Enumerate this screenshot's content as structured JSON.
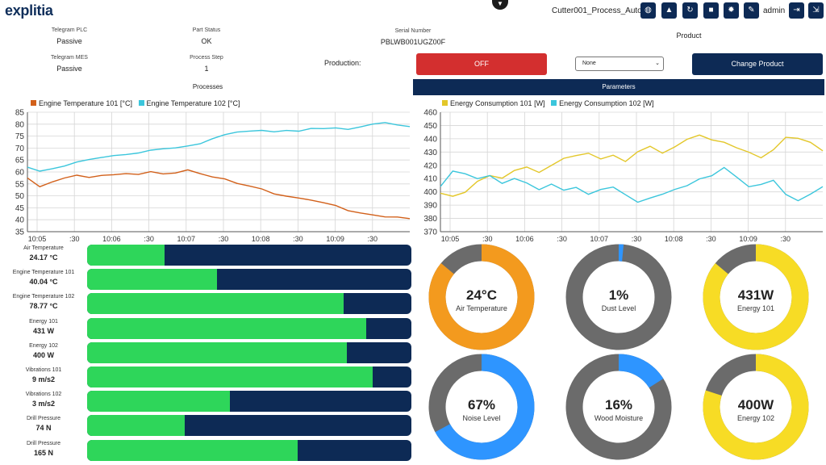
{
  "header": {
    "logo": "explitia",
    "process_name": "Cutter001_Process_Auto",
    "user": "admin",
    "colors": {
      "navy": "#0d2a55",
      "off_red": "#d32f2f",
      "bar_green": "#2ed65a"
    },
    "toolbar_icons": [
      "globe-icon",
      "warning-icon",
      "refresh-icon",
      "save-icon",
      "gear-icon",
      "pencil-icon",
      "logout-icon",
      "exit-icon"
    ]
  },
  "info": {
    "telegram_plc": {
      "label": "Telegram PLC",
      "value": "Passive"
    },
    "part_status": {
      "label": "Part Status",
      "value": "OK"
    },
    "serial": {
      "label": "Serial Number",
      "value": "PBLWB001UGZ00F"
    },
    "product": {
      "label": "Product"
    },
    "telegram_mes": {
      "label": "Telegram MES",
      "value": "Passive"
    },
    "process_step": {
      "label": "Process Step",
      "value": "1"
    },
    "production_label": "Production:",
    "off_button": "OFF",
    "select_value": "None",
    "change_product": "Change Product"
  },
  "sections": {
    "processes": "Processes",
    "parameters": "Parameters"
  },
  "chart_data": [
    {
      "type": "line",
      "x_ticks": [
        "10:05",
        ":30",
        "10:06",
        ":30",
        "10:07",
        ":30",
        "10:08",
        ":30",
        "10:09",
        ":30"
      ],
      "ylim": [
        35,
        85
      ],
      "y_ticks": [
        35,
        40,
        45,
        50,
        55,
        60,
        65,
        70,
        75,
        80,
        85
      ],
      "grid": true,
      "legend_position": "top-left",
      "series": [
        {
          "name": "Engine Temperature 101 [°C]",
          "color": "#d2601a",
          "values": [
            57.5,
            54,
            56,
            57.5,
            58.5,
            57.5,
            58.5,
            59,
            59.5,
            59,
            60,
            59,
            59.5,
            61,
            59.5,
            58,
            57,
            55,
            54,
            53,
            51,
            50,
            49,
            48,
            47,
            46,
            44,
            43,
            42,
            41,
            41,
            40.5
          ]
        },
        {
          "name": "Engine Temperature 102 [°C]",
          "color": "#3bc6dc",
          "values": [
            62,
            60.5,
            61.5,
            62.5,
            64,
            65,
            66,
            67,
            67.5,
            68,
            69,
            69.5,
            70,
            71,
            72,
            74,
            75.5,
            76.5,
            77,
            77.5,
            77,
            77.5,
            77,
            78,
            78,
            78.5,
            78,
            79,
            80,
            80.5,
            79.5,
            79
          ]
        }
      ]
    },
    {
      "type": "line",
      "x_ticks": [
        "10:05",
        ":30",
        "10:06",
        ":30",
        "10:07",
        ":30",
        "10:08",
        ":30",
        "10:09",
        ":30"
      ],
      "ylim": [
        370,
        460
      ],
      "y_ticks": [
        370,
        380,
        390,
        400,
        410,
        420,
        430,
        440,
        450,
        460
      ],
      "grid": true,
      "legend_position": "top-left",
      "series": [
        {
          "name": "Energy Consumption 101 [W]",
          "color": "#e3c72a",
          "values": [
            399,
            397,
            400,
            408,
            412,
            410,
            416,
            419,
            415,
            420,
            425,
            427,
            429,
            425,
            428,
            423,
            430,
            434,
            429,
            434,
            440,
            443,
            439,
            437,
            433,
            430,
            426,
            432,
            441,
            440,
            437,
            431
          ]
        },
        {
          "name": "Energy Consumption 102 [W]",
          "color": "#3bc6dc",
          "values": [
            404,
            416,
            414,
            410,
            412,
            406,
            410,
            407,
            402,
            406,
            401,
            403,
            398,
            402,
            404,
            398,
            392,
            395,
            398,
            402,
            405,
            410,
            412,
            418,
            411,
            404,
            406,
            409,
            398,
            393,
            398,
            404
          ]
        }
      ]
    }
  ],
  "bars": [
    {
      "name": "Air Temperature",
      "value": "24.17 °C",
      "fraction": 0.24
    },
    {
      "name": "Engine Temperature 101",
      "value": "40.04 °C",
      "fraction": 0.4
    },
    {
      "name": "Engine Temperature 102",
      "value": "78.77 °C",
      "fraction": 0.79
    },
    {
      "name": "Energy 101",
      "value": "431 W",
      "fraction": 0.86
    },
    {
      "name": "Energy 102",
      "value": "400 W",
      "fraction": 0.8
    },
    {
      "name": "Vibrations 101",
      "value": "9 m/s2",
      "fraction": 0.88
    },
    {
      "name": "Vibrations 102",
      "value": "3 m/s2",
      "fraction": 0.44
    },
    {
      "name": "Drill Pressure",
      "value": "74 N",
      "fraction": 0.3
    },
    {
      "name": "Drill Pressure",
      "value": "165 N",
      "fraction": 0.65
    }
  ],
  "gauges": [
    {
      "value": "24°C",
      "label": "Air Temperature",
      "fraction": 0.86,
      "color": "#f39a1e",
      "bg": "#6b6b6b"
    },
    {
      "value": "1%",
      "label": "Dust Level",
      "fraction": 0.015,
      "color": "#2e95ff",
      "bg": "#6b6b6b"
    },
    {
      "value": "431W",
      "label": "Energy 101",
      "fraction": 0.86,
      "color": "#f7dc25",
      "bg": "#6b6b6b"
    },
    {
      "value": "67%",
      "label": "Noise Level",
      "fraction": 0.67,
      "color": "#2e95ff",
      "bg": "#6b6b6b"
    },
    {
      "value": "16%",
      "label": "Wood Moisture",
      "fraction": 0.16,
      "color": "#2e95ff",
      "bg": "#6b6b6b"
    },
    {
      "value": "400W",
      "label": "Energy 102",
      "fraction": 0.8,
      "color": "#f7dc25",
      "bg": "#6b6b6b"
    }
  ]
}
